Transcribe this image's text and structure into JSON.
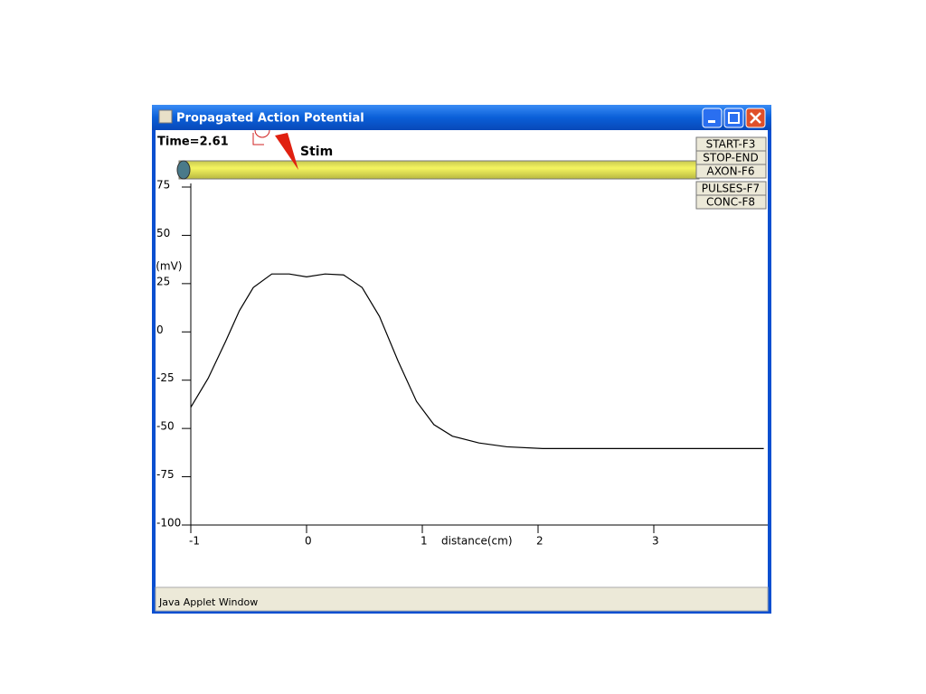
{
  "window": {
    "title": "Propagated Action Potential",
    "status": "Java Applet Window"
  },
  "time_label": "Time=2.61",
  "stim_label": "Stim",
  "buttons": [
    "START-F3",
    "STOP-END",
    "AXON-F6",
    "PULSES-F7",
    "CONC-F8"
  ],
  "chart_data": {
    "type": "line",
    "x_label": "distance(cm)",
    "y_label": "V(mV)",
    "x": [
      -1,
      -0.85,
      -0.7,
      -0.58,
      -0.46,
      -0.3,
      -0.15,
      0,
      0.16,
      0.32,
      0.48,
      0.63,
      0.79,
      0.95,
      1.1,
      1.26,
      1.49,
      1.73,
      2.04,
      2.82,
      3.95
    ],
    "series": [
      {
        "color": "#000000",
        "values": [
          -39,
          -24,
          -5,
          11,
          23,
          30,
          30,
          28.5,
          30,
          29.5,
          23,
          8,
          -15,
          -36,
          -48,
          -54,
          -57.5,
          -59.5,
          -60.4,
          -60.4,
          -60.4
        ]
      }
    ],
    "xlim": [
      -1,
      4
    ],
    "ylim": [
      -100,
      75
    ],
    "xticks": [
      -1,
      0,
      1,
      2,
      3
    ],
    "yticks": [
      -100,
      -75,
      -50,
      -25,
      0,
      25,
      50,
      75
    ]
  }
}
